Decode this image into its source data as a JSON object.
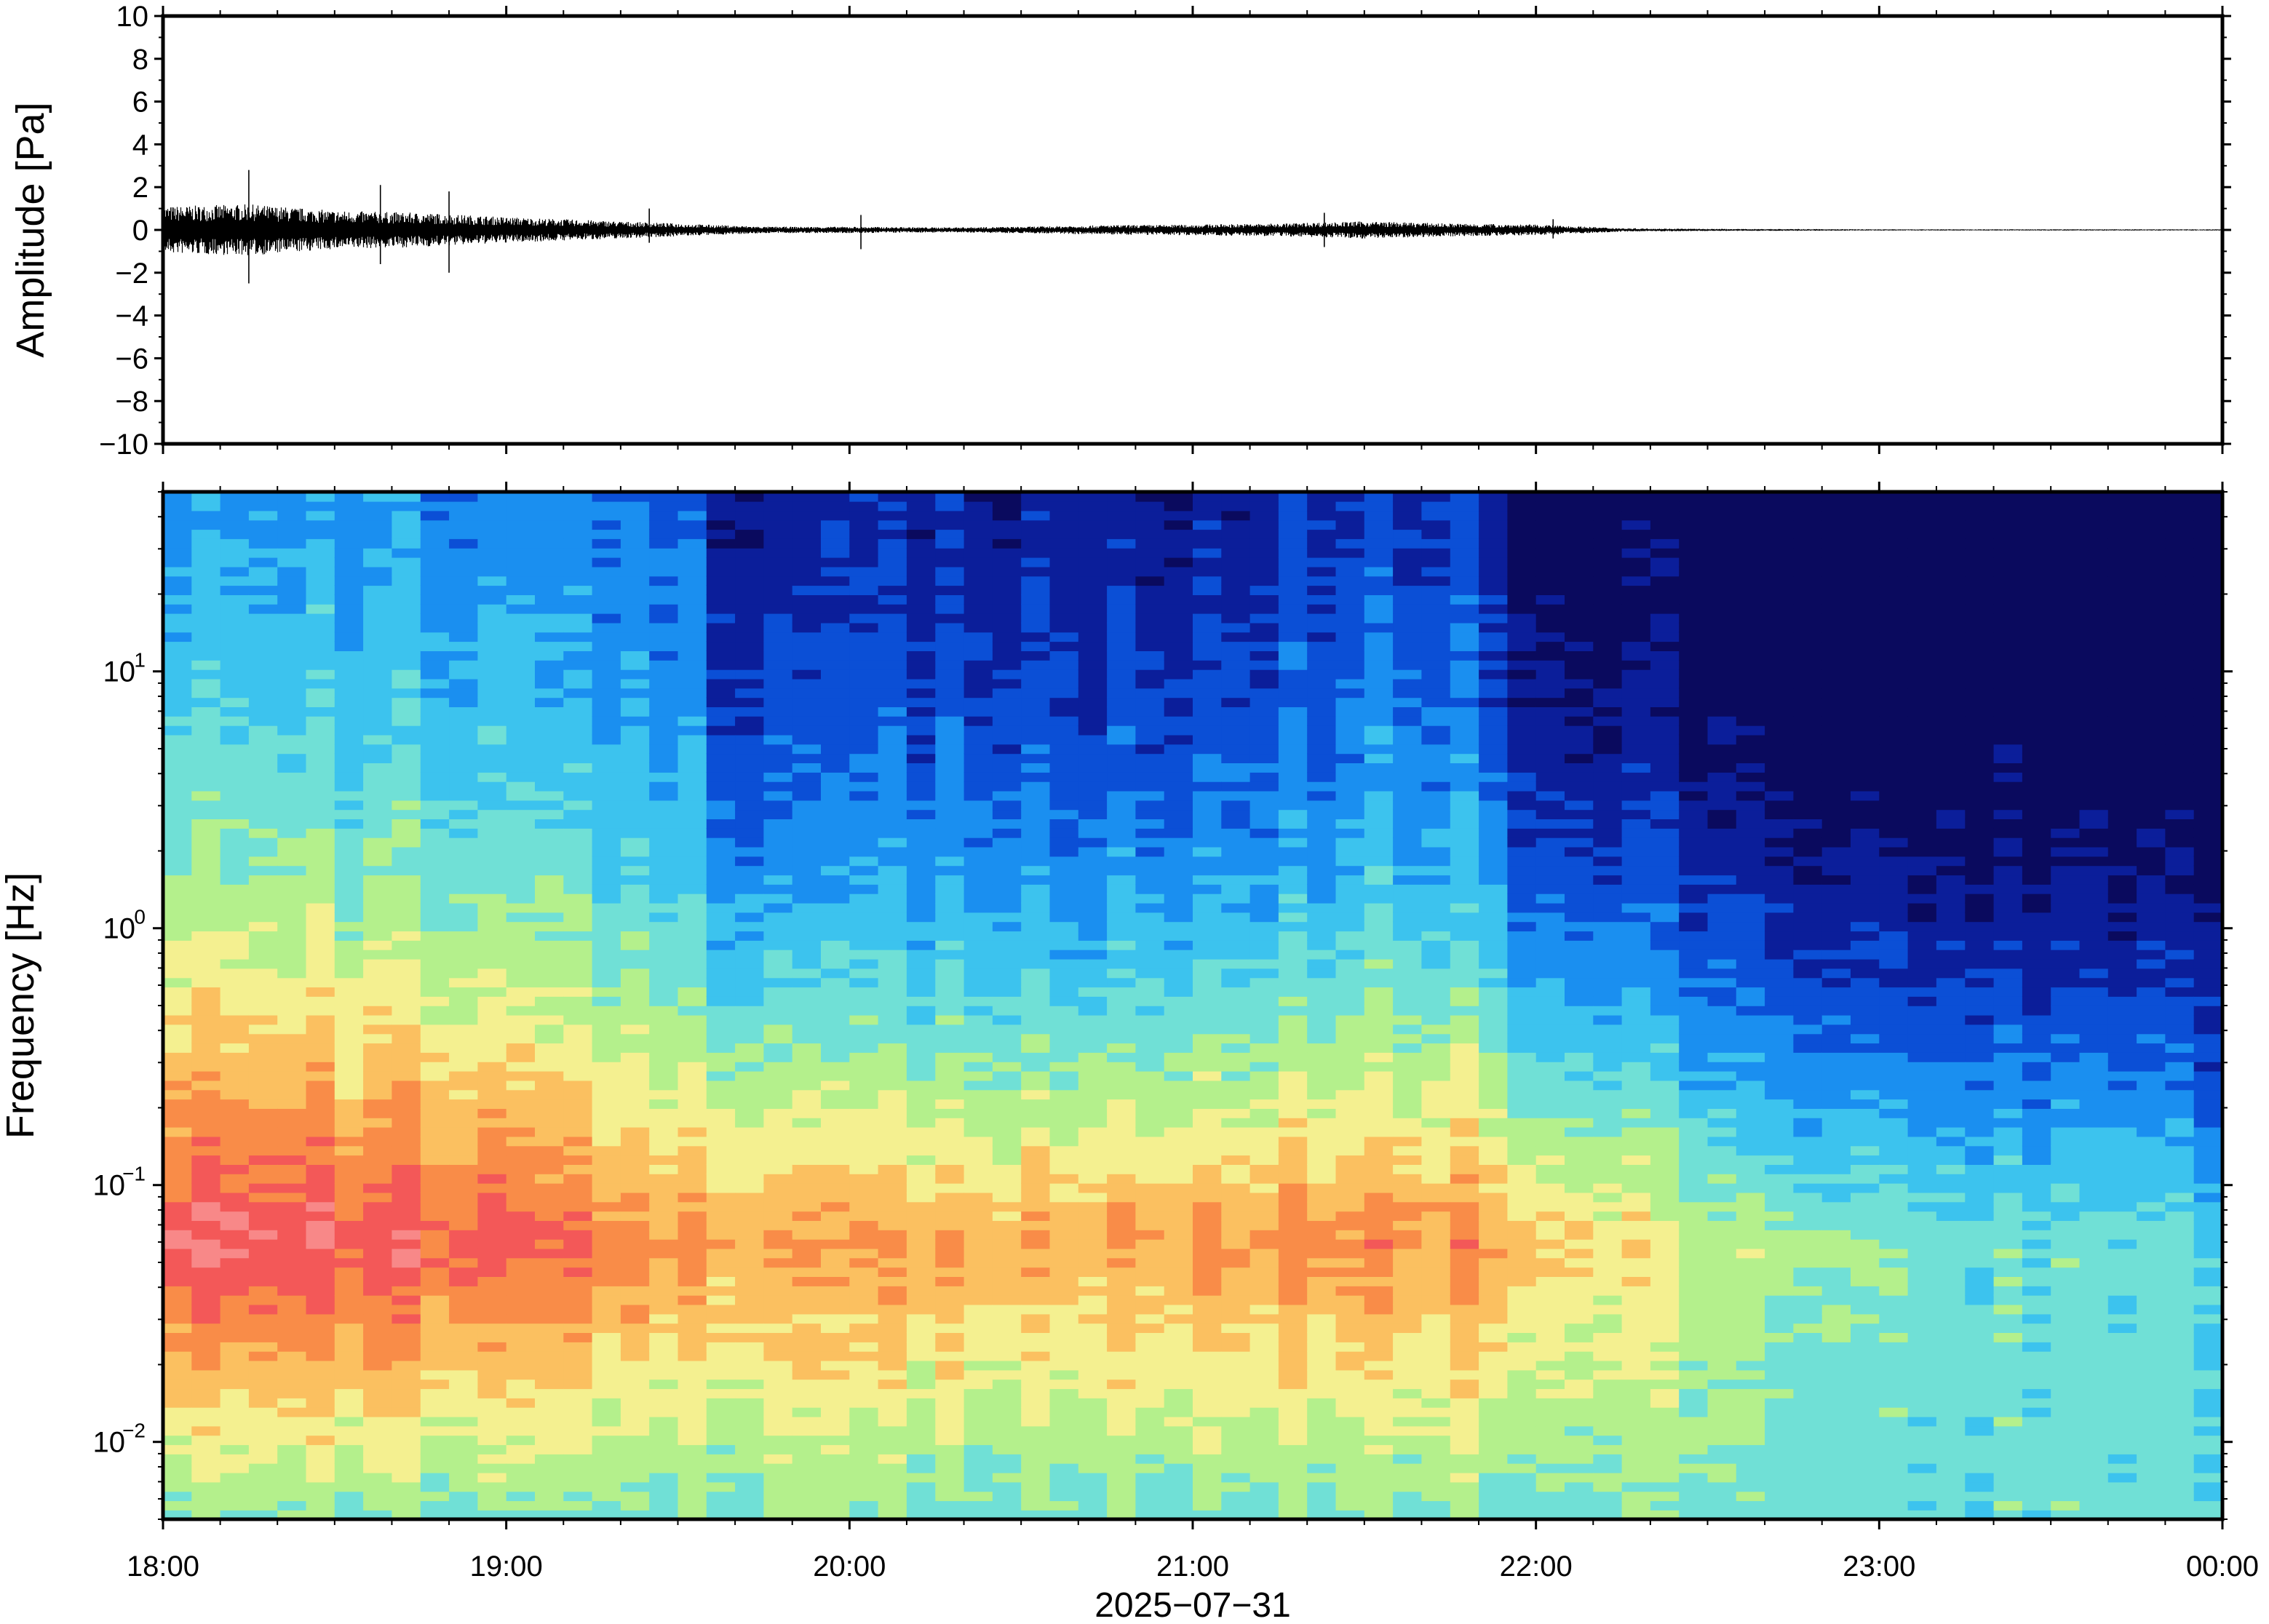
{
  "chart_data": [
    {
      "type": "line",
      "panel": "waveform",
      "title": "",
      "ylabel": "Amplitude [Pa]",
      "ylim": [
        -10,
        10
      ],
      "yticks": [
        10,
        8,
        6,
        4,
        2,
        0,
        -2,
        -4,
        -6,
        -8,
        -10
      ],
      "ytick_labels": [
        "10",
        "8",
        "6",
        "4",
        "2",
        "0",
        "−2",
        "−4",
        "−6",
        "−8",
        "−10"
      ],
      "xlim": [
        "18:00",
        "00:00"
      ],
      "grid": false,
      "series_color": "#000000",
      "envelope": {
        "x_hours": [
          18.0,
          18.25,
          18.5,
          18.75,
          19.0,
          19.25,
          19.5,
          19.75,
          20.0,
          20.25,
          20.5,
          20.75,
          21.0,
          21.25,
          21.5,
          21.75,
          22.0,
          22.25,
          22.5,
          22.75,
          23.0,
          23.25,
          23.5,
          23.75,
          24.0
        ],
        "amplitude": [
          1.1,
          1.2,
          0.9,
          0.8,
          0.6,
          0.45,
          0.3,
          0.15,
          0.15,
          0.12,
          0.15,
          0.22,
          0.25,
          0.3,
          0.4,
          0.3,
          0.25,
          0.08,
          0.05,
          0.04,
          0.03,
          0.03,
          0.03,
          0.03,
          0.03
        ]
      },
      "spikes": [
        {
          "x": "18:15",
          "max": 2.8,
          "min": -2.5
        },
        {
          "x": "18:38",
          "max": 2.1,
          "min": -1.6
        },
        {
          "x": "18:50",
          "max": 1.8,
          "min": -2.0
        },
        {
          "x": "19:25",
          "max": 1.0,
          "min": -0.6
        },
        {
          "x": "20:02",
          "max": 0.7,
          "min": -0.9
        },
        {
          "x": "21:23",
          "max": 0.8,
          "min": -0.8
        },
        {
          "x": "22:03",
          "max": 0.5,
          "min": -0.4
        }
      ]
    },
    {
      "type": "heatmap",
      "panel": "spectrogram",
      "title": "",
      "ylabel": "Frequency [Hz]",
      "yscale": "log",
      "ylim": [
        0.005,
        50
      ],
      "yticks": [
        0.01,
        0.1,
        1,
        10
      ],
      "ytick_labels": [
        {
          "base": "10",
          "exp": "−2"
        },
        {
          "base": "10",
          "exp": "−1"
        },
        {
          "base": "10",
          "exp": "0"
        },
        {
          "base": "10",
          "exp": "1"
        }
      ],
      "xlabel": "2025−07−31",
      "x_ticks": [
        "18:00",
        "19:00",
        "20:00",
        "21:00",
        "22:00",
        "23:00",
        "00:00"
      ],
      "colormap": "jet",
      "colors": [
        "#0a0a5e",
        "#0b1e9a",
        "#0b4fd6",
        "#1a8ff0",
        "#3cc3ee",
        "#70e0d6",
        "#b4f08c",
        "#f4f090",
        "#fbc060",
        "#f98c48",
        "#f35858",
        "#f88888"
      ],
      "time_hours": [
        18.0,
        18.5,
        19.0,
        19.5,
        19.65,
        20.0,
        20.5,
        21.0,
        21.5,
        21.85,
        22.0,
        22.3,
        22.5,
        23.0,
        23.5,
        24.0
      ],
      "noise_floor_high_freq_level": [
        0.32,
        0.3,
        0.29,
        0.26,
        0.08,
        0.12,
        0.13,
        0.09,
        0.19,
        0.16,
        0.02,
        0.02,
        0.0,
        0.0,
        0.0,
        0.0
      ],
      "microseism_peak_freq_hz": 0.06,
      "microseism_level": [
        0.95,
        0.9,
        0.88,
        0.78,
        0.75,
        0.75,
        0.75,
        0.76,
        0.8,
        0.78,
        0.7,
        0.65,
        0.55,
        0.5,
        0.45,
        0.44
      ]
    }
  ]
}
